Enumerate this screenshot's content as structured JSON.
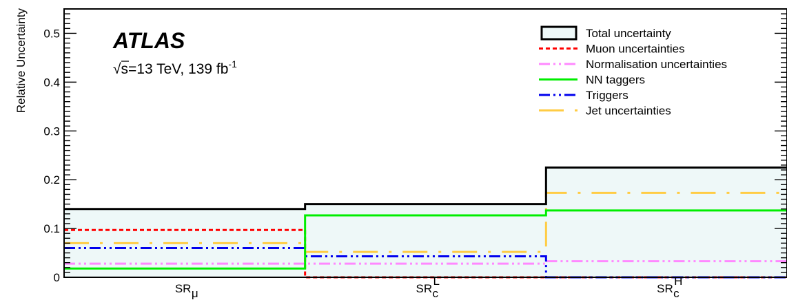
{
  "chart_data": {
    "type": "line",
    "subtype": "step-histogram",
    "experiment_label": "ATLAS",
    "energy_label": {
      "sqrt_prefix": "√s=13 TeV, 139 fb",
      "exponent": "-1"
    },
    "ylabel": "Relative Uncertainty",
    "xlabel": "",
    "ylim": [
      0,
      0.55
    ],
    "yticks": [
      "0",
      "0.1",
      "0.2",
      "0.3",
      "0.4",
      "0.5"
    ],
    "categories": [
      {
        "base": "SR",
        "sub": "μ",
        "sup": ""
      },
      {
        "base": "SR",
        "sub": "c",
        "sup": "L"
      },
      {
        "base": "SR",
        "sub": "c",
        "sup": "H"
      }
    ],
    "grid": false,
    "legend_position": "top-right",
    "series": [
      {
        "name": "Total uncertainty",
        "style": "fill-outline",
        "color": "#000000",
        "fill": "#eef8f8",
        "values": [
          0.14,
          0.15,
          0.225
        ]
      },
      {
        "name": "Muon uncertainties",
        "style": "dotted",
        "color": "#ff0000",
        "values": [
          0.097,
          0.0,
          0.0
        ]
      },
      {
        "name": "Normalisation uncertainties",
        "style": "dash-dot-dot",
        "color": "#ff88ff",
        "values": [
          0.028,
          0.028,
          0.033
        ]
      },
      {
        "name": "NN taggers",
        "style": "solid",
        "color": "#00ee00",
        "values": [
          0.018,
          0.127,
          0.137
        ]
      },
      {
        "name": "Triggers",
        "style": "dash-dot-dot",
        "color": "#0000ee",
        "values": [
          0.06,
          0.043,
          0.0
        ]
      },
      {
        "name": "Jet uncertainties",
        "style": "long-dash-dot",
        "color": "#ffcc44",
        "values": [
          0.07,
          0.052,
          0.173
        ]
      }
    ]
  }
}
